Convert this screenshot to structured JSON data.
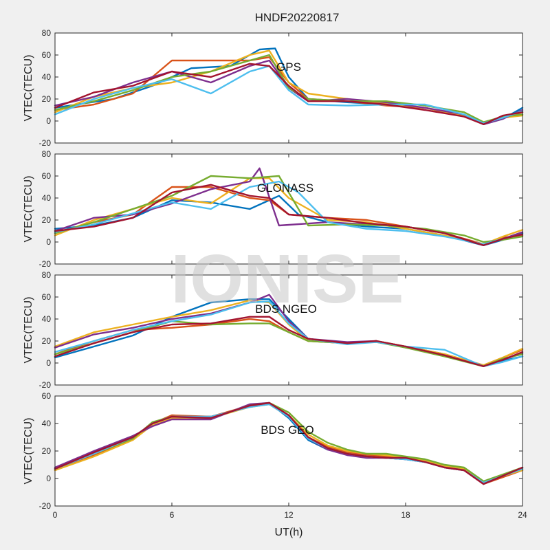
{
  "figure": {
    "title": "HNDF20220817",
    "xlabel": "UT(h)",
    "watermark": "IONISE"
  },
  "chart_data": [
    {
      "type": "line",
      "panel_label": "GPS",
      "ylabel": "VTEC(TECU)",
      "xlim": [
        0,
        24
      ],
      "xticks": [
        0,
        6,
        12,
        18,
        24
      ],
      "ylim": [
        -20,
        80
      ],
      "yticks": [
        -20,
        0,
        20,
        40,
        60,
        80
      ],
      "grid": false,
      "series": [
        {
          "color": "#0072BD",
          "x": [
            0,
            3,
            5,
            7,
            9,
            10.5,
            11.3,
            12,
            13,
            15,
            17,
            19,
            21,
            22,
            23,
            24
          ],
          "y": [
            12,
            20,
            32,
            48,
            50,
            65,
            66,
            40,
            20,
            17,
            15,
            12,
            5,
            -3,
            2,
            12
          ]
        },
        {
          "color": "#D95319",
          "x": [
            0,
            2,
            4,
            6,
            8,
            10,
            11,
            12,
            13,
            15,
            17,
            19,
            21,
            22,
            23,
            24
          ],
          "y": [
            10,
            15,
            25,
            55,
            55,
            55,
            58,
            35,
            20,
            18,
            14,
            12,
            4,
            -2,
            3,
            8
          ]
        },
        {
          "color": "#EDB120",
          "x": [
            0,
            2,
            4,
            6,
            8,
            10,
            11,
            12,
            13,
            15,
            17,
            19,
            21,
            22,
            23,
            24
          ],
          "y": [
            8,
            22,
            30,
            35,
            45,
            60,
            64,
            35,
            25,
            20,
            16,
            12,
            5,
            -2,
            3,
            5
          ]
        },
        {
          "color": "#7E2F8E",
          "x": [
            0,
            2,
            4,
            6,
            8,
            10,
            11,
            12,
            13,
            15,
            17,
            19,
            21,
            22,
            23,
            24
          ],
          "y": [
            14,
            22,
            35,
            45,
            35,
            50,
            55,
            30,
            18,
            20,
            17,
            12,
            6,
            -3,
            2,
            10
          ]
        },
        {
          "color": "#77AC30",
          "x": [
            0,
            2,
            4,
            6,
            8,
            10,
            11,
            12,
            13,
            15,
            17,
            19,
            21,
            22,
            23,
            24
          ],
          "y": [
            10,
            18,
            28,
            40,
            45,
            55,
            60,
            30,
            20,
            18,
            18,
            14,
            8,
            -1,
            4,
            6
          ]
        },
        {
          "color": "#4DBEEE",
          "x": [
            0,
            2,
            4,
            6,
            8,
            10,
            11,
            12,
            13,
            15,
            17,
            19,
            21,
            22,
            23,
            24
          ],
          "y": [
            6,
            20,
            30,
            38,
            25,
            45,
            50,
            28,
            15,
            14,
            15,
            15,
            6,
            -2,
            3,
            9
          ]
        },
        {
          "color": "#A2142F",
          "x": [
            0,
            2,
            4,
            6,
            8,
            10,
            11,
            12,
            13,
            15,
            17,
            19,
            21,
            22,
            23,
            24
          ],
          "y": [
            12,
            26,
            32,
            45,
            40,
            52,
            50,
            32,
            18,
            18,
            15,
            10,
            4,
            -3,
            5,
            8
          ]
        }
      ]
    },
    {
      "type": "line",
      "panel_label": "GLONASS",
      "ylabel": "VTEC(TECU)",
      "xlim": [
        0,
        24
      ],
      "xticks": [
        0,
        6,
        12,
        18,
        24
      ],
      "ylim": [
        -20,
        80
      ],
      "yticks": [
        -20,
        0,
        20,
        40,
        60,
        80
      ],
      "grid": false,
      "series": [
        {
          "color": "#0072BD",
          "x": [
            0,
            2,
            4,
            6,
            8,
            10,
            11.5,
            12.5,
            14,
            16,
            18,
            20,
            22,
            23,
            24
          ],
          "y": [
            12,
            15,
            22,
            38,
            36,
            30,
            42,
            25,
            18,
            14,
            12,
            6,
            -3,
            2,
            8
          ]
        },
        {
          "color": "#D95319",
          "x": [
            0,
            2,
            4,
            6,
            8,
            10,
            11,
            12,
            14,
            16,
            18,
            20,
            22,
            23,
            24
          ],
          "y": [
            8,
            18,
            25,
            50,
            50,
            40,
            38,
            25,
            22,
            20,
            14,
            8,
            -2,
            4,
            6
          ]
        },
        {
          "color": "#EDB120",
          "x": [
            0,
            2,
            4,
            6,
            8,
            10,
            11,
            12,
            14,
            16,
            18,
            20,
            22,
            23,
            24
          ],
          "y": [
            6,
            20,
            30,
            40,
            35,
            58,
            58,
            40,
            20,
            18,
            12,
            6,
            -2,
            5,
            11
          ]
        },
        {
          "color": "#7E2F8E",
          "x": [
            0,
            2,
            4,
            6,
            8,
            10,
            10.5,
            11.5,
            14,
            16,
            18,
            20,
            22,
            23,
            24
          ],
          "y": [
            10,
            22,
            25,
            35,
            48,
            55,
            67,
            15,
            18,
            16,
            14,
            8,
            -3,
            3,
            9
          ]
        },
        {
          "color": "#77AC30",
          "x": [
            0,
            2,
            4,
            6,
            8,
            10,
            11.5,
            13,
            15,
            17,
            19,
            21,
            22,
            23,
            24
          ],
          "y": [
            8,
            18,
            30,
            42,
            60,
            58,
            60,
            15,
            16,
            15,
            12,
            6,
            0,
            2,
            5
          ]
        },
        {
          "color": "#4DBEEE",
          "x": [
            0,
            2,
            4,
            6,
            8,
            10,
            11.5,
            12.5,
            14,
            16,
            18,
            20,
            22,
            23,
            24
          ],
          "y": [
            9,
            16,
            26,
            36,
            30,
            50,
            55,
            45,
            18,
            12,
            10,
            5,
            -2,
            3,
            7
          ]
        },
        {
          "color": "#A2142F",
          "x": [
            0,
            2,
            4,
            6,
            8,
            10,
            11,
            12,
            14,
            16,
            18,
            20,
            22,
            23,
            24
          ],
          "y": [
            10,
            14,
            22,
            45,
            52,
            42,
            40,
            25,
            22,
            17,
            14,
            8,
            -3,
            3,
            7
          ]
        }
      ]
    },
    {
      "type": "line",
      "panel_label": "BDS NGEO",
      "ylabel": "VTEC(TECU)",
      "xlim": [
        0,
        24
      ],
      "xticks": [
        0,
        6,
        12,
        18,
        24
      ],
      "ylim": [
        -20,
        80
      ],
      "yticks": [
        -20,
        0,
        20,
        40,
        60,
        80
      ],
      "grid": false,
      "series": [
        {
          "color": "#0072BD",
          "x": [
            0,
            2,
            4,
            6,
            8,
            10,
            11,
            12,
            13,
            15,
            16.5,
            18,
            20,
            22,
            23,
            24
          ],
          "y": [
            5,
            15,
            25,
            42,
            55,
            58,
            58,
            40,
            22,
            18,
            20,
            15,
            8,
            -3,
            2,
            6
          ]
        },
        {
          "color": "#D95319",
          "x": [
            0,
            2,
            4,
            6,
            8,
            10,
            11,
            12,
            13,
            15,
            16.5,
            18,
            20,
            22,
            23,
            24
          ],
          "y": [
            8,
            20,
            30,
            32,
            35,
            40,
            38,
            28,
            20,
            18,
            20,
            15,
            8,
            -2,
            5,
            12
          ]
        },
        {
          "color": "#EDB120",
          "x": [
            0,
            2,
            4,
            6,
            8,
            10,
            11,
            12,
            13,
            15,
            16.5,
            18,
            20,
            22,
            23,
            24
          ],
          "y": [
            15,
            28,
            35,
            42,
            48,
            57,
            55,
            35,
            20,
            18,
            20,
            15,
            8,
            -2,
            5,
            13
          ]
        },
        {
          "color": "#7E2F8E",
          "x": [
            0,
            2,
            4,
            6,
            8,
            10,
            11,
            12,
            13,
            15,
            16.5,
            18,
            20,
            22,
            23,
            24
          ],
          "y": [
            14,
            26,
            32,
            40,
            45,
            55,
            62,
            38,
            22,
            19,
            20,
            14,
            7,
            -3,
            3,
            9
          ]
        },
        {
          "color": "#77AC30",
          "x": [
            0,
            2,
            4,
            6,
            8,
            10,
            11,
            12,
            13,
            15,
            16.5,
            18,
            20,
            22,
            23,
            24
          ],
          "y": [
            8,
            18,
            28,
            38,
            35,
            36,
            36,
            28,
            20,
            18,
            19,
            14,
            6,
            -3,
            4,
            8
          ]
        },
        {
          "color": "#4DBEEE",
          "x": [
            0,
            2,
            4,
            6,
            8,
            10,
            11,
            12,
            13,
            15,
            16.5,
            18,
            20,
            22,
            23,
            24
          ],
          "y": [
            10,
            20,
            30,
            38,
            44,
            55,
            56,
            36,
            22,
            17,
            19,
            15,
            12,
            -3,
            1,
            6
          ]
        },
        {
          "color": "#A2142F",
          "x": [
            0,
            2,
            4,
            6,
            8,
            10,
            11,
            12,
            13,
            15,
            16.5,
            18,
            20,
            22,
            23,
            24
          ],
          "y": [
            6,
            18,
            28,
            35,
            36,
            42,
            42,
            30,
            22,
            18,
            20,
            15,
            7,
            -3,
            3,
            10
          ]
        }
      ]
    },
    {
      "type": "line",
      "panel_label": "BDS GEO",
      "ylabel": "VTEC(TECU)",
      "xlim": [
        0,
        24
      ],
      "xticks": [
        0,
        6,
        12,
        18,
        24
      ],
      "ylim": [
        -20,
        60
      ],
      "yticks": [
        -20,
        0,
        20,
        40,
        60
      ],
      "grid": false,
      "series": [
        {
          "color": "#0072BD",
          "x": [
            0,
            2,
            4,
            5,
            6,
            8,
            10,
            11,
            12,
            13,
            14,
            15,
            16,
            17,
            18,
            19,
            20,
            21,
            22,
            23,
            24
          ],
          "y": [
            7,
            18,
            30,
            40,
            45,
            45,
            52,
            55,
            44,
            28,
            21,
            18,
            16,
            15,
            14,
            12,
            8,
            6,
            -3,
            2,
            7
          ]
        },
        {
          "color": "#D95319",
          "x": [
            0,
            2,
            4,
            5,
            6,
            8,
            10,
            11,
            12,
            13,
            14,
            15,
            16,
            17,
            18,
            19,
            20,
            21,
            22,
            23,
            24
          ],
          "y": [
            6,
            17,
            29,
            40,
            46,
            45,
            53,
            54,
            45,
            30,
            23,
            19,
            17,
            16,
            15,
            13,
            9,
            6,
            -4,
            1,
            6
          ]
        },
        {
          "color": "#EDB120",
          "x": [
            0,
            2,
            4,
            5,
            6,
            8,
            10,
            11,
            12,
            13,
            14,
            15,
            16,
            17,
            18,
            19,
            20,
            21,
            22,
            23,
            24
          ],
          "y": [
            6,
            16,
            28,
            39,
            44,
            44,
            52,
            54,
            46,
            32,
            24,
            20,
            18,
            17,
            15,
            13,
            9,
            7,
            -4,
            2,
            6
          ]
        },
        {
          "color": "#7E2F8E",
          "x": [
            0,
            2,
            4,
            5,
            6,
            8,
            10,
            11,
            12,
            13,
            14,
            15,
            16,
            17,
            18,
            19,
            20,
            21,
            22,
            23,
            24
          ],
          "y": [
            8,
            20,
            31,
            38,
            43,
            43,
            54,
            55,
            46,
            29,
            21,
            17,
            15,
            15,
            14,
            12,
            8,
            6,
            -4,
            2,
            8
          ]
        },
        {
          "color": "#77AC30",
          "x": [
            0,
            2,
            4,
            5,
            6,
            8,
            10,
            11,
            12,
            13,
            14,
            15,
            16,
            17,
            18,
            19,
            20,
            21,
            22,
            23,
            24
          ],
          "y": [
            7,
            18,
            29,
            41,
            45,
            44,
            53,
            55,
            48,
            34,
            26,
            21,
            18,
            18,
            16,
            14,
            10,
            8,
            -2,
            3,
            8
          ]
        },
        {
          "color": "#4DBEEE",
          "x": [
            0,
            2,
            4,
            5,
            6,
            8,
            10,
            11,
            12,
            13,
            14,
            15,
            16,
            17,
            18,
            19,
            20,
            21,
            22,
            23,
            24
          ],
          "y": [
            7,
            18,
            30,
            40,
            45,
            45,
            52,
            54,
            45,
            29,
            22,
            18,
            16,
            15,
            14,
            12,
            8,
            6,
            -3,
            2,
            7
          ]
        },
        {
          "color": "#A2142F",
          "x": [
            0,
            2,
            4,
            5,
            6,
            8,
            10,
            11,
            12,
            13,
            14,
            15,
            16,
            17,
            18,
            19,
            20,
            21,
            22,
            23,
            24
          ],
          "y": [
            7,
            19,
            30,
            40,
            45,
            44,
            53,
            55,
            46,
            30,
            22,
            18,
            16,
            15,
            15,
            12,
            8,
            6,
            -4,
            2,
            8
          ]
        }
      ]
    }
  ]
}
